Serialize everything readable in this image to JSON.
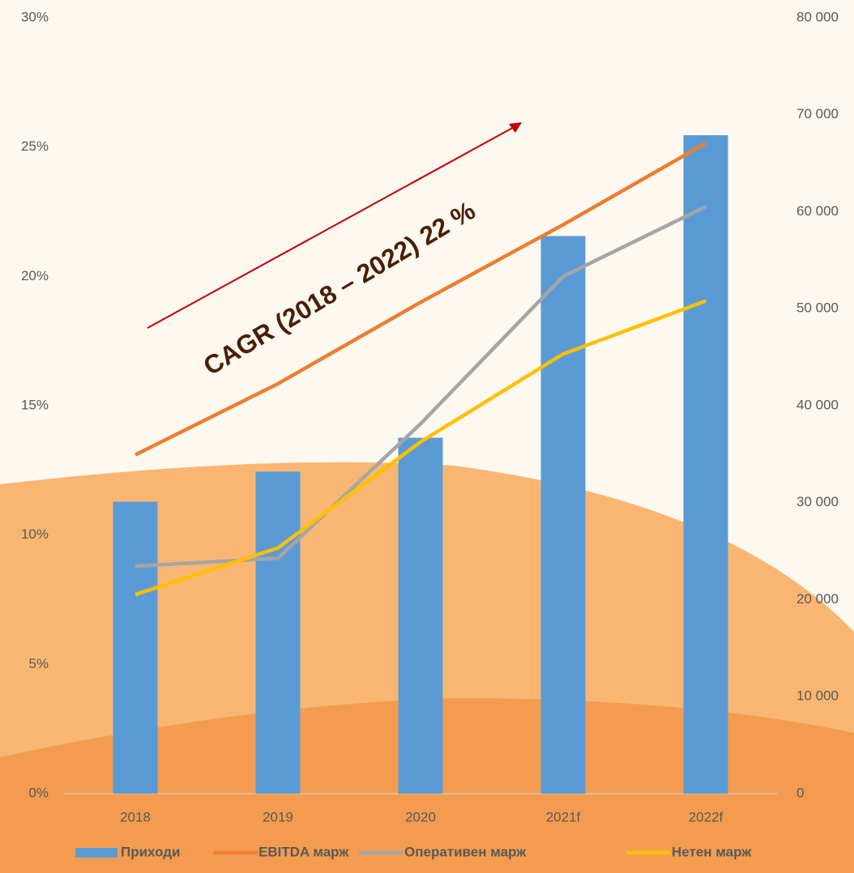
{
  "chart_data": {
    "type": "combo",
    "annotation": "CAGR (2018 – 2022) 22 %",
    "categories": [
      "2018",
      "2019",
      "2020",
      "2021f",
      "2022f"
    ],
    "series": [
      {
        "name": "Приходи",
        "type": "bar",
        "axis": "y2",
        "color": "#5b9bd5",
        "values": [
          30100,
          33200,
          36700,
          57500,
          67900
        ]
      },
      {
        "name": "EBITDA марж",
        "type": "line",
        "color": "#ed7d31",
        "values": [
          13.1,
          15.85,
          19.0,
          22.0,
          25.15
        ]
      },
      {
        "name": "Оперативен марж",
        "type": "line",
        "color": "#a5a5a5",
        "values": [
          8.8,
          9.1,
          14.3,
          20.0,
          22.7
        ]
      },
      {
        "name": "Нетен марж",
        "type": "line",
        "color": "#ffc000",
        "values": [
          7.7,
          9.5,
          13.6,
          17.0,
          19.05
        ]
      }
    ],
    "ylim": [
      0,
      30
    ],
    "yticks": [
      {
        "value": 0,
        "label": "0%"
      },
      {
        "value": 5,
        "label": "5%"
      },
      {
        "value": 10,
        "label": "10%"
      },
      {
        "value": 15,
        "label": "15%"
      },
      {
        "value": 20,
        "label": "20%"
      },
      {
        "value": 25,
        "label": "25%"
      },
      {
        "value": 30,
        "label": "30%"
      }
    ],
    "y2lim": [
      0,
      80000
    ],
    "y2ticks": [
      0,
      {
        "value": 10000,
        "label": "10 000"
      },
      {
        "value": 20000,
        "label": "20 000"
      },
      {
        "value": 30000,
        "label": "30 000"
      },
      {
        "value": 40000,
        "label": "40 000"
      },
      {
        "value": 50000,
        "label": "50 000"
      },
      {
        "value": 60000,
        "label": "60 000"
      },
      {
        "value": 70000,
        "label": "70 000"
      },
      {
        "value": 80000,
        "label": "80 000"
      }
    ],
    "legend": "bottom"
  }
}
